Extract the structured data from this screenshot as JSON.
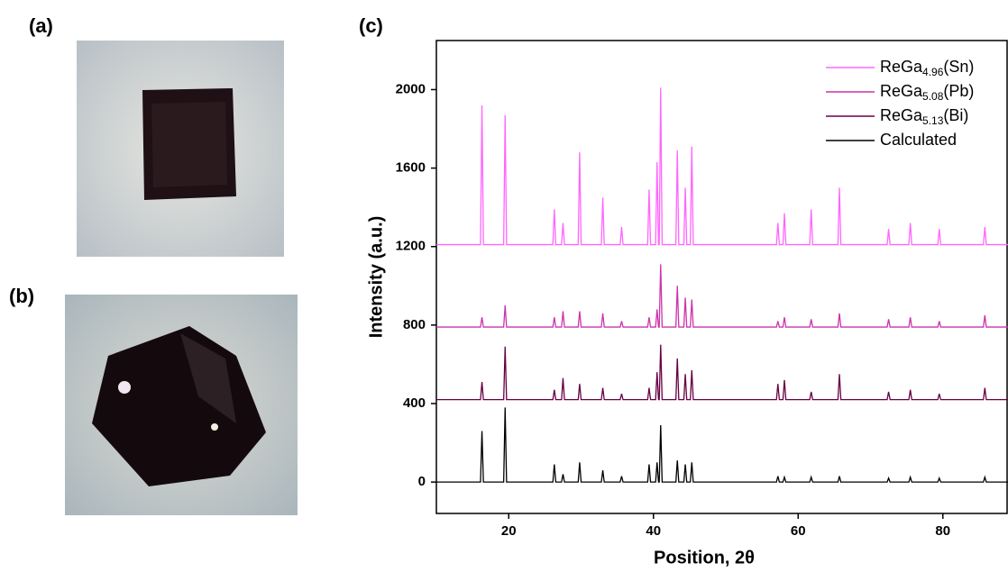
{
  "panels": {
    "a": "(a)",
    "b": "(b)",
    "c": "(c)"
  },
  "chart_data": {
    "type": "line",
    "xlabel": "Position, 2θ",
    "ylabel": "Intensity (a.u.)",
    "xlim": [
      10,
      89
    ],
    "ylim": [
      -160,
      2250
    ],
    "xticks": [
      20,
      40,
      60,
      80
    ],
    "yticks": [
      0,
      400,
      800,
      1200,
      1600,
      2000
    ],
    "legend": "upper right",
    "x": [
      10,
      16.1,
      16.3,
      16.5,
      19.3,
      19.5,
      19.7,
      26.1,
      26.3,
      26.5,
      27.3,
      27.5,
      27.7,
      29.6,
      29.8,
      30.0,
      32.8,
      33.0,
      33.2,
      35.4,
      35.6,
      35.8,
      39.2,
      39.4,
      39.6,
      40.3,
      40.5,
      40.7,
      40.8,
      41.0,
      41.2,
      43.1,
      43.3,
      43.5,
      44.2,
      44.4,
      44.6,
      45.1,
      45.3,
      45.5,
      57.0,
      57.2,
      57.4,
      57.9,
      58.1,
      58.3,
      61.6,
      61.8,
      62.0,
      65.5,
      65.7,
      65.9,
      72.3,
      72.5,
      72.7,
      75.3,
      75.5,
      75.7,
      79.3,
      79.5,
      79.7,
      85.6,
      85.8,
      86.0,
      89
    ],
    "series": [
      {
        "name": "ReGa4.96(Sn)",
        "color": "#ff66ff",
        "values": [
          1210,
          1210,
          1920,
          1210,
          1210,
          1870,
          1210,
          1210,
          1390,
          1210,
          1210,
          1320,
          1210,
          1210,
          1680,
          1210,
          1210,
          1450,
          1210,
          1210,
          1300,
          1210,
          1210,
          1490,
          1210,
          1210,
          1630,
          1210,
          1210,
          2010,
          1210,
          1210,
          1690,
          1210,
          1210,
          1500,
          1210,
          1210,
          1710,
          1210,
          1210,
          1320,
          1210,
          1210,
          1370,
          1210,
          1210,
          1390,
          1210,
          1210,
          1500,
          1210,
          1210,
          1290,
          1210,
          1210,
          1320,
          1210,
          1210,
          1290,
          1210,
          1210,
          1300,
          1210,
          1210
        ]
      },
      {
        "name": "ReGa5.08(Pb)",
        "color": "#cc33aa",
        "values": [
          790,
          790,
          840,
          790,
          790,
          900,
          790,
          790,
          840,
          790,
          790,
          870,
          790,
          790,
          870,
          790,
          790,
          860,
          790,
          790,
          820,
          790,
          790,
          840,
          790,
          790,
          880,
          790,
          790,
          1110,
          790,
          790,
          1000,
          790,
          790,
          940,
          790,
          790,
          930,
          790,
          790,
          820,
          790,
          790,
          840,
          790,
          790,
          830,
          790,
          790,
          860,
          790,
          790,
          830,
          790,
          790,
          840,
          790,
          790,
          820,
          790,
          790,
          850,
          790,
          790
        ]
      },
      {
        "name": "ReGa5.13(Bi)",
        "color": "#660044",
        "values": [
          420,
          420,
          510,
          420,
          420,
          690,
          420,
          420,
          470,
          420,
          420,
          530,
          420,
          420,
          500,
          420,
          420,
          480,
          420,
          420,
          450,
          420,
          420,
          480,
          420,
          420,
          560,
          420,
          420,
          700,
          420,
          420,
          630,
          420,
          420,
          550,
          420,
          420,
          570,
          420,
          420,
          500,
          420,
          420,
          520,
          420,
          420,
          460,
          420,
          420,
          550,
          420,
          420,
          460,
          420,
          420,
          470,
          420,
          420,
          450,
          420,
          420,
          480,
          420,
          420
        ]
      },
      {
        "name": "Calculated",
        "color": "#000000",
        "values": [
          0,
          0,
          260,
          0,
          0,
          380,
          0,
          0,
          90,
          0,
          0,
          40,
          0,
          0,
          100,
          0,
          0,
          60,
          0,
          0,
          30,
          0,
          0,
          90,
          0,
          0,
          100,
          0,
          0,
          290,
          0,
          0,
          110,
          0,
          0,
          90,
          0,
          0,
          100,
          0,
          0,
          30,
          0,
          0,
          25,
          0,
          0,
          25,
          0,
          0,
          30,
          0,
          0,
          20,
          0,
          0,
          25,
          0,
          0,
          20,
          0,
          0,
          25,
          0,
          0
        ]
      }
    ]
  }
}
